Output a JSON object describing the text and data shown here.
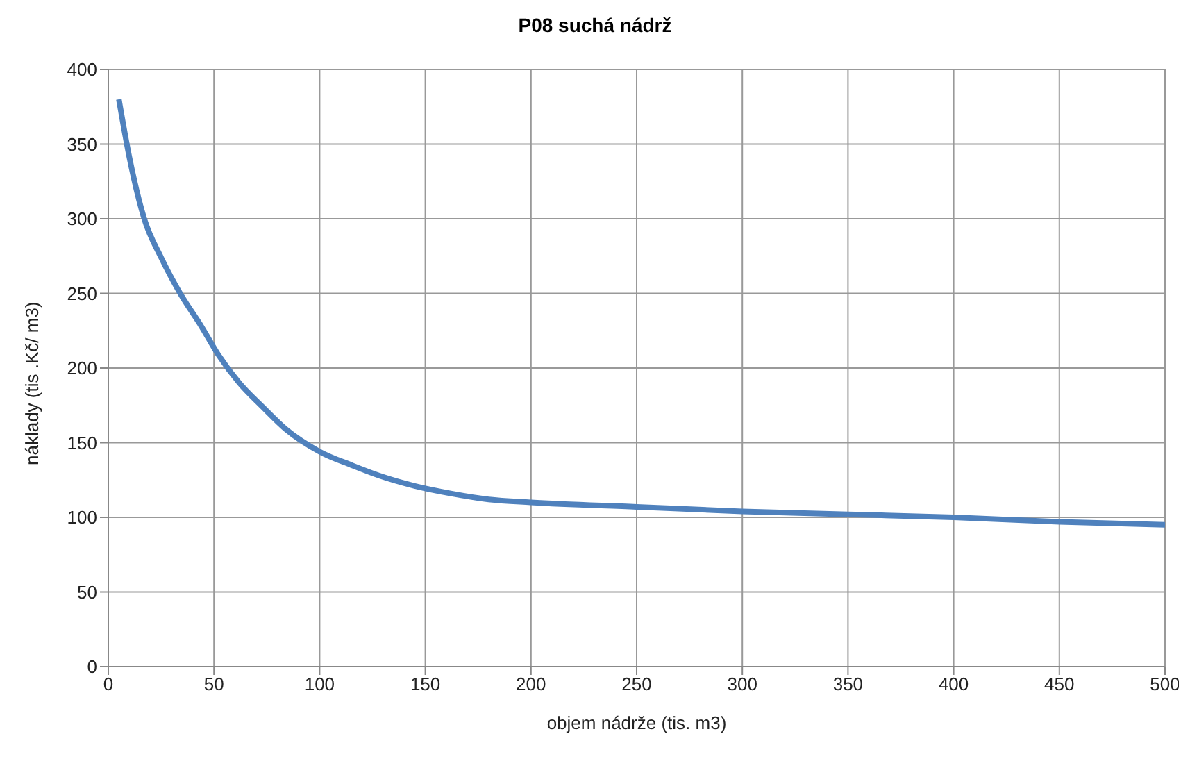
{
  "chart_data": {
    "type": "line",
    "title": "P08 suchá nádrž",
    "xlabel": "objem nádrže (tis. m3)",
    "ylabel": "náklady (tis .Kč/ m3)",
    "x": [
      5,
      10,
      17,
      25,
      34,
      44,
      52,
      62,
      73,
      84,
      100,
      115,
      128,
      145,
      162,
      180,
      200,
      250,
      300,
      350,
      400,
      450,
      500
    ],
    "series": [
      {
        "color": "#4f81bd",
        "values": [
          380,
          341,
          300,
          274,
          250,
          228,
          209,
          190,
          174,
          159,
          144,
          135,
          128,
          121,
          116,
          112,
          110,
          107,
          104,
          102,
          100,
          97,
          95
        ]
      }
    ],
    "xlim": [
      0,
      500
    ],
    "xticks": [
      0,
      50,
      100,
      150,
      200,
      250,
      300,
      350,
      400,
      450,
      500
    ],
    "ylim": [
      0,
      400
    ],
    "yticks": [
      0,
      50,
      100,
      150,
      200,
      250,
      300,
      350,
      400
    ],
    "grid": true,
    "legend": false,
    "marker": "none",
    "line_style": "solid"
  }
}
